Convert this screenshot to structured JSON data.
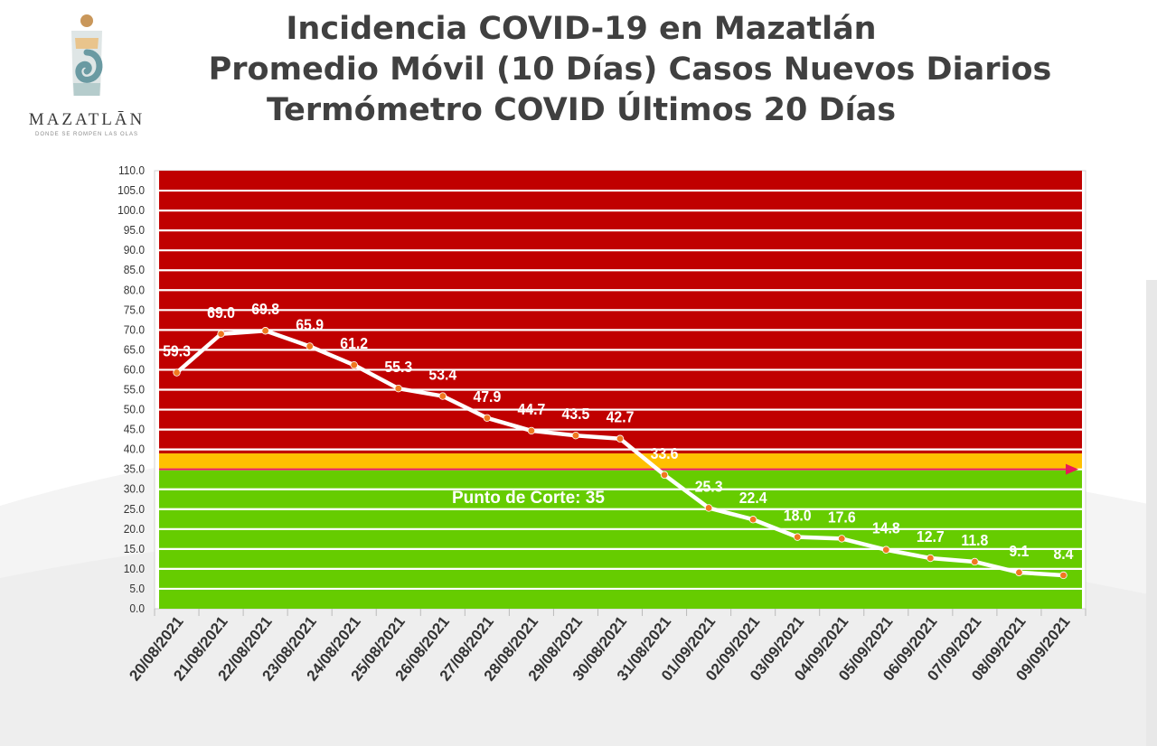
{
  "header": {
    "title_line1": "Incidencia COVID-19 en Mazatlán",
    "title_line2": "Promedio Móvil (10 Días) Casos Nuevos Diarios",
    "title_line3": "Termómetro COVID Últimos 20 Días"
  },
  "logo": {
    "name": "MAZATLĀN",
    "tagline": "DONDE SE ROMPEN LAS OLAS"
  },
  "colors": {
    "red_zone": "#c00000",
    "yellow_zone": "#ffc000",
    "green_zone": "#66cc00",
    "line": "#ffffff",
    "marker": "#f07820",
    "cut_arrow": "#e8195a",
    "axis_text": "#333333"
  },
  "chart_data": {
    "type": "line",
    "title": "Termómetro COVID Últimos 20 Días",
    "xlabel": "",
    "ylabel": "",
    "ylim": [
      0,
      110
    ],
    "ytick_step": 5,
    "grid": true,
    "categories": [
      "20/08/2021",
      "21/08/2021",
      "22/08/2021",
      "23/08/2021",
      "24/08/2021",
      "25/08/2021",
      "26/08/2021",
      "27/08/2021",
      "28/08/2021",
      "29/08/2021",
      "30/08/2021",
      "31/08/2021",
      "01/09/2021",
      "02/09/2021",
      "03/09/2021",
      "04/09/2021",
      "05/09/2021",
      "06/09/2021",
      "07/09/2021",
      "08/09/2021",
      "09/09/2021"
    ],
    "series": [
      {
        "values": [
          59.3,
          69.0,
          69.8,
          65.9,
          61.2,
          55.3,
          53.4,
          47.9,
          44.7,
          43.5,
          42.7,
          33.6,
          25.3,
          22.4,
          18.0,
          17.6,
          14.8,
          12.7,
          11.8,
          9.1,
          8.4
        ]
      }
    ],
    "bands": [
      {
        "from": 0,
        "to": 35,
        "color": "#66cc00"
      },
      {
        "from": 35,
        "to": 39,
        "color": "#ffc000"
      },
      {
        "from": 39,
        "to": 110,
        "color": "#c00000"
      }
    ],
    "cut_point": {
      "value": 35,
      "label": "Punto de Corte: 35"
    }
  }
}
